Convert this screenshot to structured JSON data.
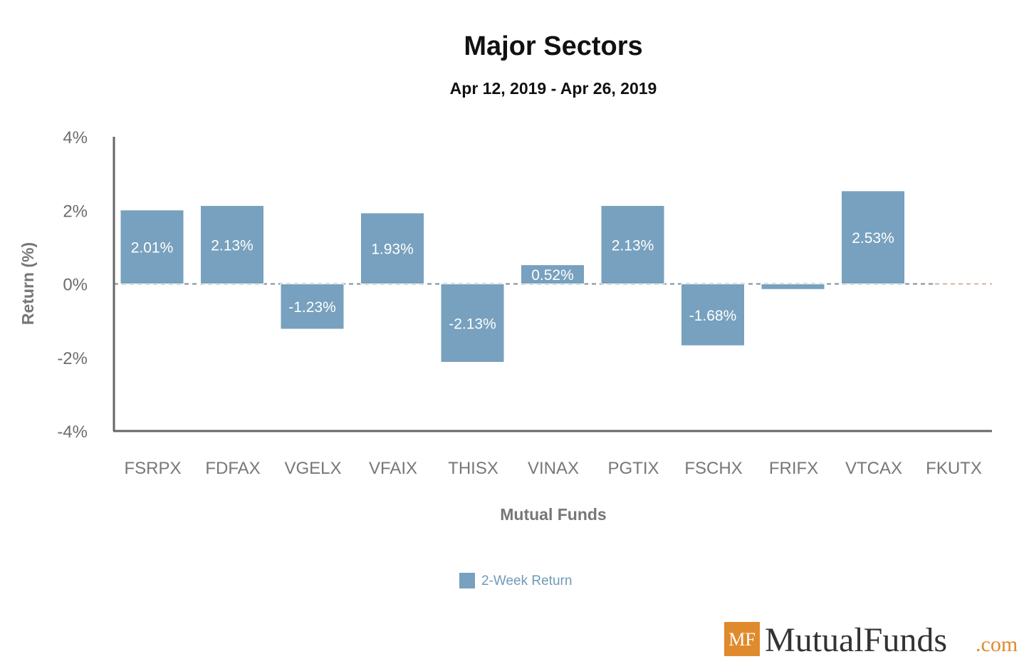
{
  "chart_data": {
    "type": "bar",
    "title": "Major Sectors",
    "subtitle": "Apr 12, 2019 - Apr 26, 2019",
    "xlabel": "Mutual Funds",
    "ylabel": "Return (%)",
    "ylim": [
      -4,
      4
    ],
    "yticks": [
      4,
      2,
      0,
      -2,
      -4
    ],
    "ytick_labels": [
      "4%",
      "2%",
      "0%",
      "-2%",
      "-4%"
    ],
    "categories": [
      "FSRPX",
      "FDFAX",
      "VGELX",
      "VFAIX",
      "THISX",
      "VINAX",
      "PGTIX",
      "FSCHX",
      "FRIFX",
      "VTCAX",
      "FKUTX"
    ],
    "series": [
      {
        "name": "2-Week Return",
        "color": "#77a1be",
        "values": [
          2.01,
          2.13,
          -1.23,
          1.93,
          -2.13,
          0.52,
          2.13,
          -1.68,
          -0.15,
          2.53,
          0
        ],
        "labels": [
          "2.01%",
          "2.13%",
          "-1.23%",
          "1.93%",
          "-2.13%",
          "0.52%",
          "2.13%",
          "-1.68%",
          "",
          "2.53%",
          ""
        ]
      }
    ],
    "legend": {
      "position": "bottom-center",
      "entries": [
        "2-Week Return"
      ]
    }
  },
  "logo": {
    "mark": "MF",
    "name": "MutualFunds",
    "suffix": ".com"
  }
}
